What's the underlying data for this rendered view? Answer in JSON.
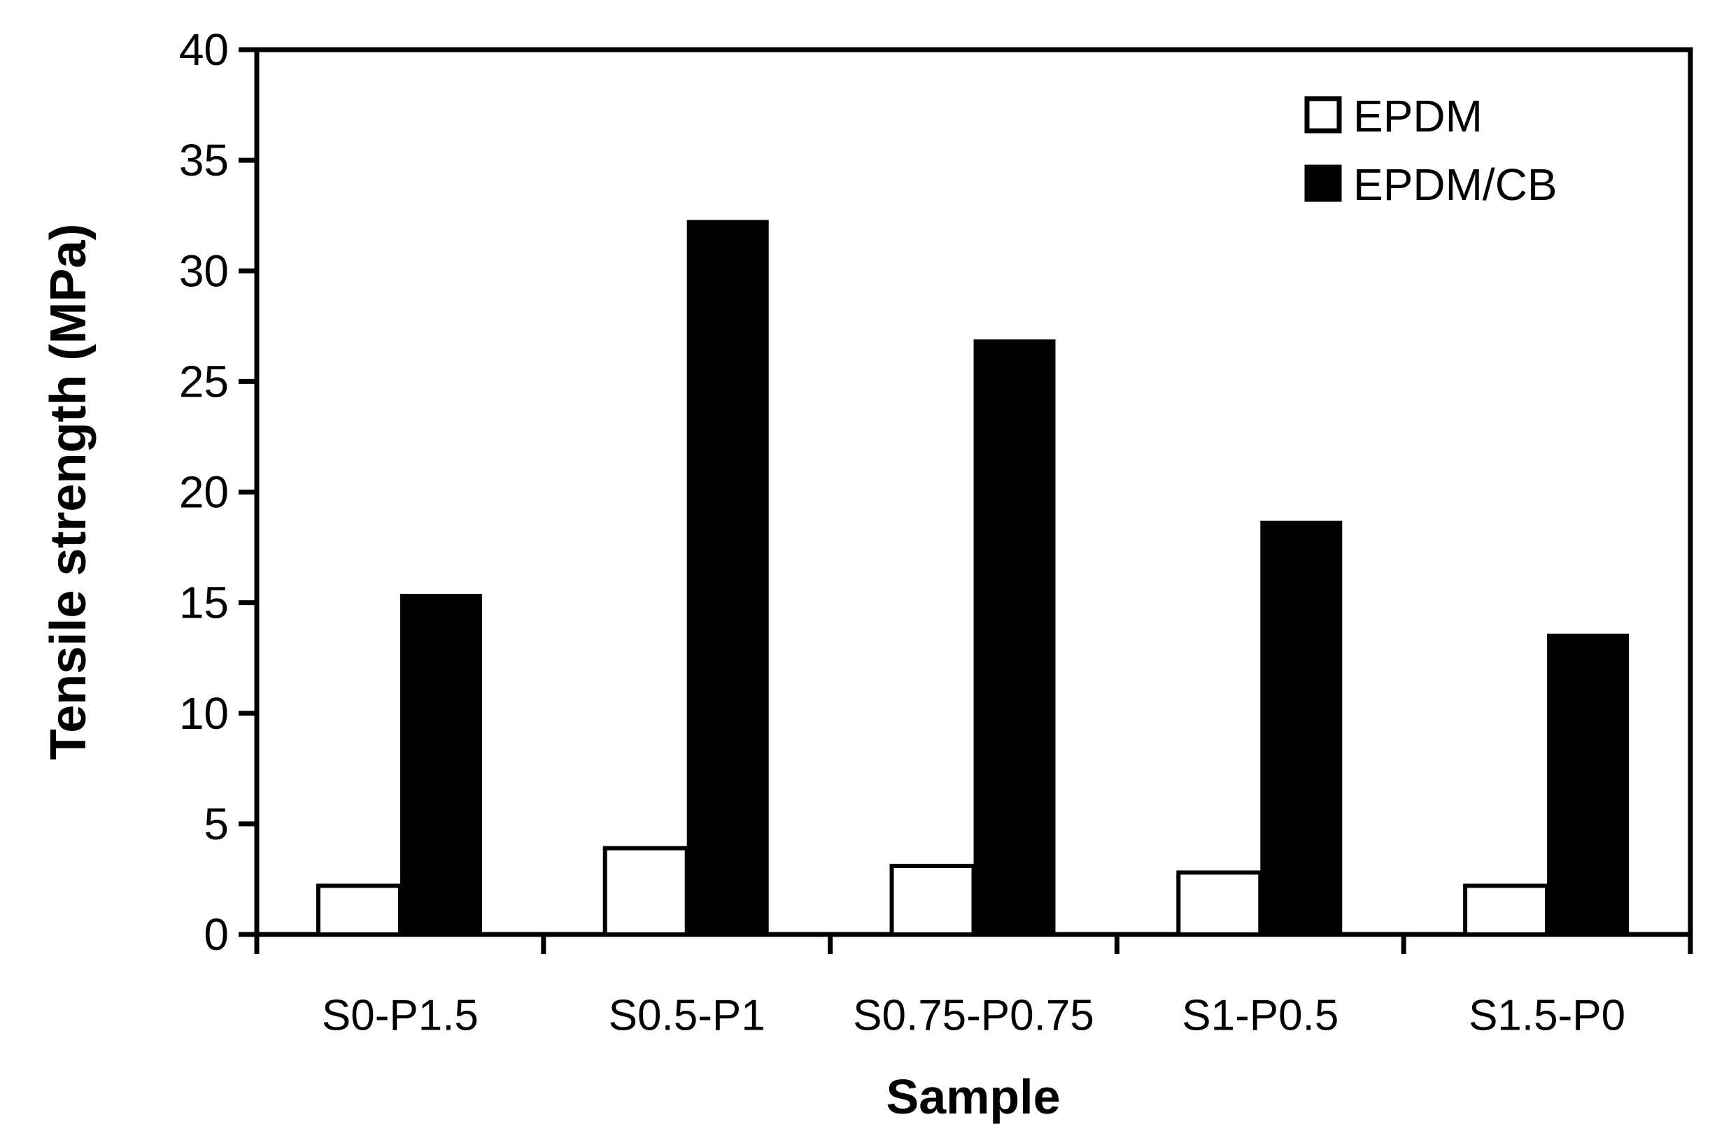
{
  "chart_data": {
    "type": "bar",
    "title": "",
    "xlabel": "Sample",
    "ylabel": "Tensile strength (MPa)",
    "categories": [
      "S0-P1.5",
      "S0.5-P1",
      "S0.75-P0.75",
      "S1-P0.5",
      "S1.5-P0"
    ],
    "series": [
      {
        "name": "EPDM",
        "values": [
          2.2,
          3.9,
          3.1,
          2.8,
          2.2
        ],
        "fill": "#ffffff",
        "stroke": "#000000"
      },
      {
        "name": "EPDM/CB",
        "values": [
          15.4,
          32.3,
          26.9,
          18.7,
          13.6
        ],
        "fill": "#000000",
        "stroke": "#000000"
      }
    ],
    "ylim": [
      0,
      40
    ],
    "ytick_step": 5,
    "ytick_labels": [
      "0",
      "5",
      "10",
      "15",
      "20",
      "25",
      "30",
      "35",
      "40"
    ],
    "grid": false,
    "legend_position": "top-right-inside",
    "axis_color": "#000000",
    "background_color": "#ffffff"
  }
}
